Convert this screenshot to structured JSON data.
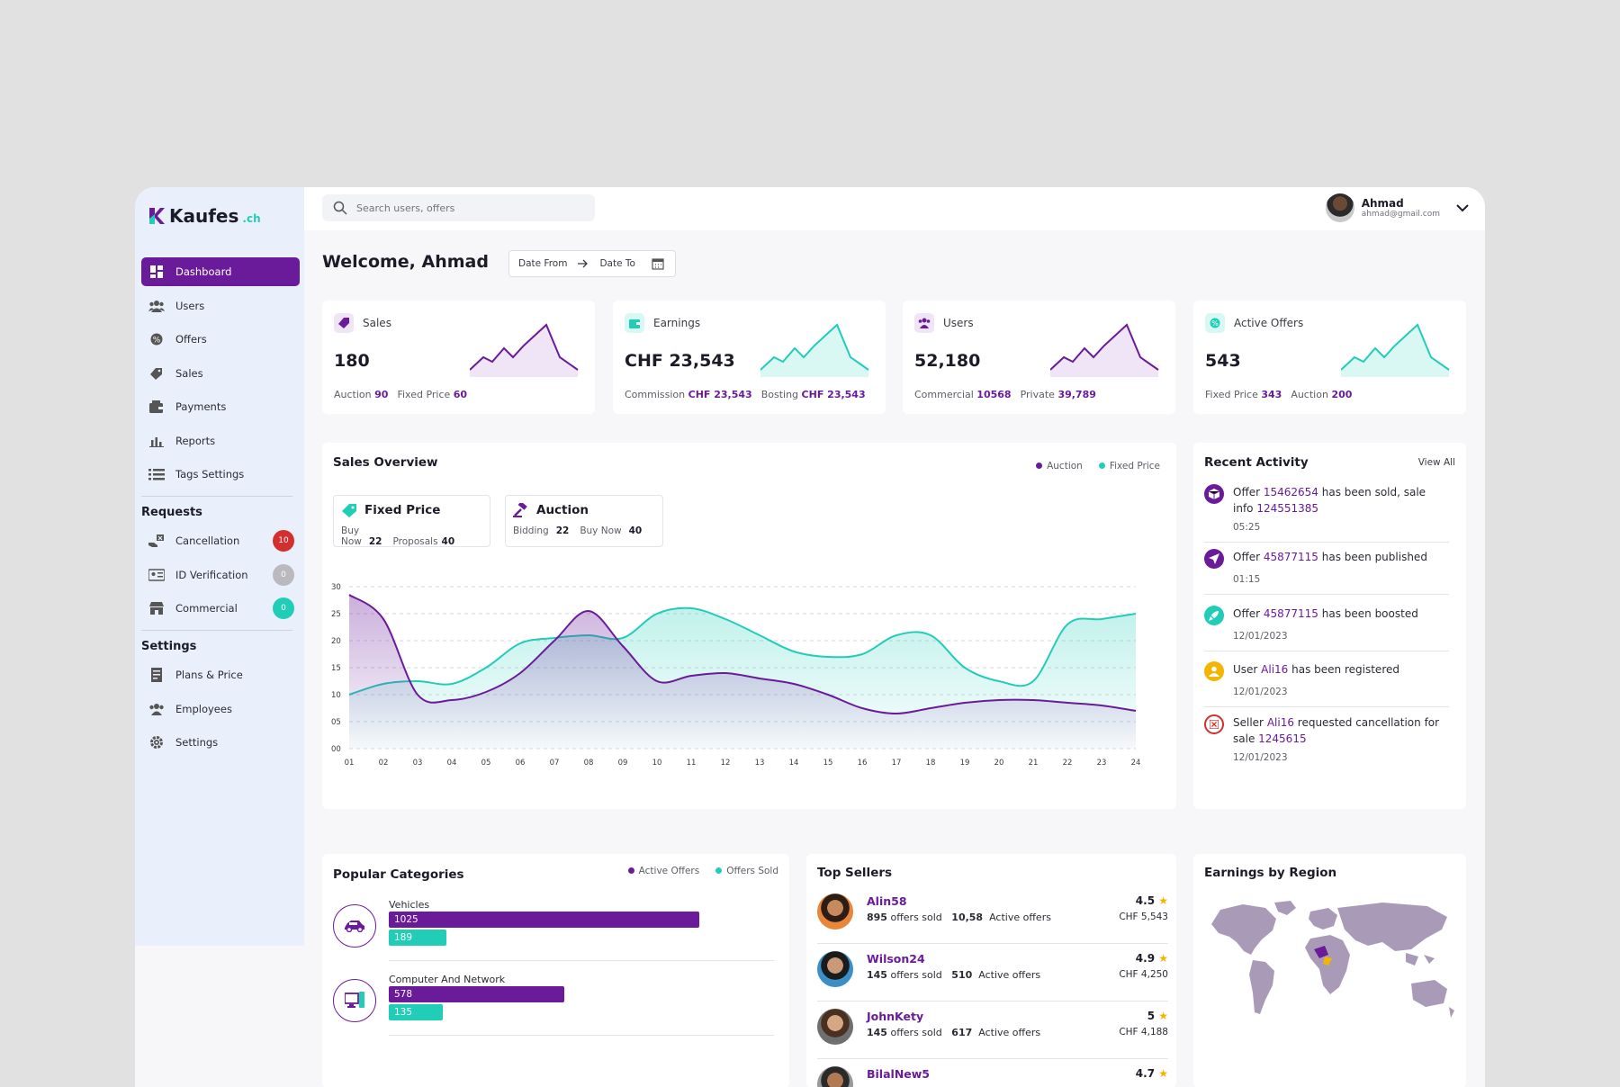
{
  "brand": {
    "name": "Kaufes",
    "tld": ".ch"
  },
  "search": {
    "placeholder": "Search users, offers"
  },
  "user": {
    "name": "Ahmad",
    "email": "ahmad@gmail.com"
  },
  "sidebar": {
    "items": [
      {
        "label": "Dashboard",
        "icon": "dashboard-icon"
      },
      {
        "label": "Users",
        "icon": "users-icon"
      },
      {
        "label": "Offers",
        "icon": "offers-icon"
      },
      {
        "label": "Sales",
        "icon": "sales-icon"
      },
      {
        "label": "Payments",
        "icon": "wallet-icon"
      },
      {
        "label": "Reports",
        "icon": "reports-icon"
      },
      {
        "label": "Tags Settings",
        "icon": "tags-icon"
      }
    ],
    "requests_title": "Requests",
    "requests": [
      {
        "label": "Cancellation",
        "badge": "10",
        "badge_color": "#d32f2f"
      },
      {
        "label": "ID Verification",
        "badge": "0",
        "badge_color": "#b9b9be"
      },
      {
        "label": "Commercial",
        "badge": "0",
        "badge_color": "#22cdb8"
      }
    ],
    "settings_title": "Settings",
    "settings": [
      {
        "label": "Plans & Price"
      },
      {
        "label": "Employees"
      },
      {
        "label": "Settings"
      }
    ]
  },
  "welcome": "Welcome, Ahmad",
  "date": {
    "from": "Date From",
    "to": "Date To"
  },
  "stats": [
    {
      "title": "Sales",
      "value": "180",
      "sub": [
        [
          "Auction",
          "90"
        ],
        [
          "Fixed Price",
          "60"
        ]
      ],
      "color": "#6a1b9a"
    },
    {
      "title": "Earnings",
      "value": "CHF 23,543",
      "sub": [
        [
          "Commission",
          "CHF 23,543"
        ],
        [
          "Bosting",
          "CHF 23,543"
        ]
      ],
      "color": "#22cdb8"
    },
    {
      "title": "Users",
      "value": "52,180",
      "sub": [
        [
          "Commercial",
          "10568"
        ],
        [
          "Private",
          "39,789"
        ]
      ],
      "color": "#6a1b9a"
    },
    {
      "title": "Active Offers",
      "value": "543",
      "sub": [
        [
          "Fixed Price",
          "343"
        ],
        [
          "Auction",
          "200"
        ]
      ],
      "color": "#22cdb8"
    }
  ],
  "sales_overview": {
    "title": "Sales Overview",
    "legend": [
      "Auction",
      "Fixed Price"
    ],
    "fixed": {
      "title": "Fixed Price",
      "a_label": "Buy Now",
      "a": "22",
      "b_label": "Proposals",
      "b": "40"
    },
    "auction": {
      "title": "Auction",
      "a_label": "Bidding",
      "a": "22",
      "b_label": "Buy Now",
      "b": "40"
    }
  },
  "chart_data": {
    "type": "area",
    "x": [
      "01",
      "02",
      "03",
      "04",
      "05",
      "06",
      "07",
      "08",
      "09",
      "10",
      "11",
      "12",
      "13",
      "14",
      "15",
      "16",
      "17",
      "18",
      "19",
      "20",
      "21",
      "22",
      "23",
      "24"
    ],
    "yticks": [
      "00",
      "05",
      "10",
      "15",
      "20",
      "25",
      "30"
    ],
    "ylim": [
      0,
      30
    ],
    "series": [
      {
        "name": "Auction",
        "color": "#6a1b9a",
        "values": [
          28.5,
          24,
          10,
          9,
          10.5,
          14,
          20,
          25.5,
          19,
          12.5,
          13.5,
          14,
          13,
          12,
          10,
          7.5,
          6.5,
          7.5,
          8.5,
          9,
          9,
          8.5,
          8,
          7
        ]
      },
      {
        "name": "Fixed Price",
        "color": "#22cdb8",
        "values": [
          10,
          12,
          12.5,
          12,
          15,
          19.5,
          20.5,
          21,
          20.5,
          25,
          26,
          24,
          21,
          18,
          17,
          17.5,
          21,
          21,
          15,
          12.5,
          12.5,
          23,
          24,
          25
        ]
      }
    ]
  },
  "recent_activity": {
    "title": "Recent Activity",
    "view_all": "View All",
    "items": [
      {
        "pre": "Offer ",
        "hl": "15462654",
        "post": " has been sold, sale info ",
        "hl2": "124551385",
        "time": "05:25",
        "icon": "cube-icon",
        "color": "#6a1b9a"
      },
      {
        "pre": "Offer ",
        "hl": "45877115",
        "post": " has been published",
        "hl2": "",
        "time": "01:15",
        "icon": "send-icon",
        "color": "#6a1b9a"
      },
      {
        "pre": "Offer ",
        "hl": "45877115",
        "post": " has been boosted",
        "hl2": "",
        "time": "12/01/2023",
        "icon": "rocket-icon",
        "color": "#22cdb8"
      },
      {
        "pre": "User ",
        "hl": "Ali16",
        "post": " has been registered",
        "hl2": "",
        "time": "12/01/2023",
        "icon": "user-icon",
        "color": "#f5b400"
      },
      {
        "pre": "Seller ",
        "hl": "Ali16",
        "post": " requested cancellation for sale ",
        "hl2": "1245615",
        "time": "12/01/2023",
        "icon": "cancel-icon",
        "color": "#d32f2f"
      }
    ]
  },
  "popular_categories": {
    "title": "Popular Categories",
    "legend": [
      "Active Offers",
      "Offers Sold"
    ],
    "max": 1025,
    "items": [
      {
        "name": "Vehicles",
        "active": "1025",
        "sold": "189",
        "icon": "car-icon"
      },
      {
        "name": "Computer And Network",
        "active": "578",
        "sold": "135",
        "icon": "computer-icon"
      }
    ]
  },
  "top_sellers": {
    "title": "Top Sellers",
    "items": [
      {
        "name": "Alin58",
        "sold": "895",
        "sold_label": "offers sold",
        "active": "10,58",
        "active_label": "Active offers",
        "rating": "4.5",
        "chf": "CHF 5,543"
      },
      {
        "name": "Wilson24",
        "sold": "145",
        "sold_label": "offers sold",
        "active": "510",
        "active_label": "Active offers",
        "rating": "4.9",
        "chf": "CHF 4,250"
      },
      {
        "name": "JohnKety",
        "sold": "145",
        "sold_label": "offers sold",
        "active": "617",
        "active_label": "Active offers",
        "rating": "5",
        "chf": "CHF 4,188"
      },
      {
        "name": "BilalNew5",
        "sold": "",
        "sold_label": "",
        "active": "",
        "active_label": "",
        "rating": "4.7",
        "chf": ""
      }
    ]
  },
  "earnings_region": {
    "title": "Earnings by Region"
  },
  "colors": {
    "purple": "#6a1b9a",
    "teal": "#22cdb8",
    "map": "#a99bb8"
  }
}
